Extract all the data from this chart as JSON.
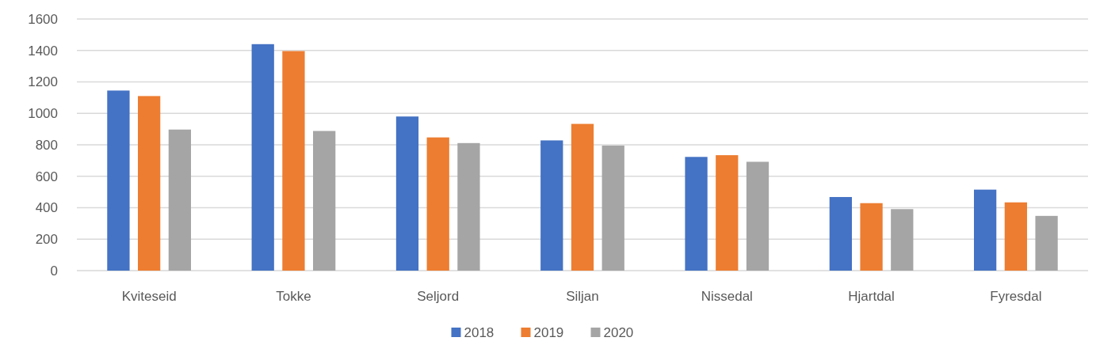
{
  "chart_data": {
    "type": "bar",
    "categories": [
      "Kviteseid",
      "Tokke",
      "Seljord",
      "Siljan",
      "Nissedal",
      "Hjartdal",
      "Fyresdal"
    ],
    "series": [
      {
        "name": "2018",
        "color": "#4472c4",
        "values": [
          1145,
          1440,
          980,
          828,
          723,
          468,
          515
        ]
      },
      {
        "name": "2019",
        "color": "#ed7d31",
        "values": [
          1110,
          1396,
          847,
          933,
          734,
          429,
          434
        ]
      },
      {
        "name": "2020",
        "color": "#a5a5a5",
        "values": [
          897,
          888,
          811,
          795,
          692,
          391,
          348
        ]
      }
    ],
    "ylim": [
      0,
      1600
    ],
    "yticks": [
      0,
      200,
      400,
      600,
      800,
      1000,
      1200,
      1400,
      1600
    ],
    "grid": "y",
    "legend": "bottom"
  }
}
